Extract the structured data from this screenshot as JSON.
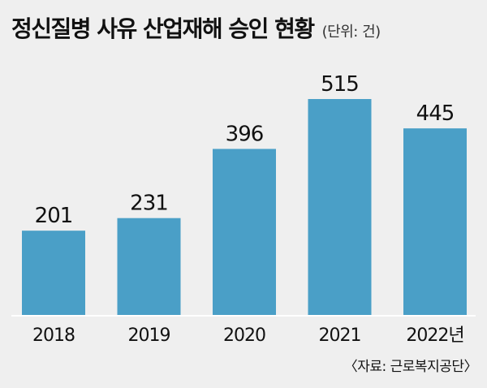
{
  "chart_data": {
    "type": "bar",
    "title": "정신질병 사유 산업재해 승인 현황",
    "unit": "(단위: 건)",
    "categories": [
      "2018",
      "2019",
      "2020",
      "2021",
      "2022년"
    ],
    "values": [
      201,
      231,
      396,
      515,
      445
    ],
    "ylim": [
      0,
      550
    ],
    "grid": false,
    "source": "〈자료: 근로복지공단〉"
  },
  "colors": {
    "background": "#efefef",
    "bar": "#4a9fc7",
    "baseline": "#ffffff",
    "text": "#111111"
  }
}
